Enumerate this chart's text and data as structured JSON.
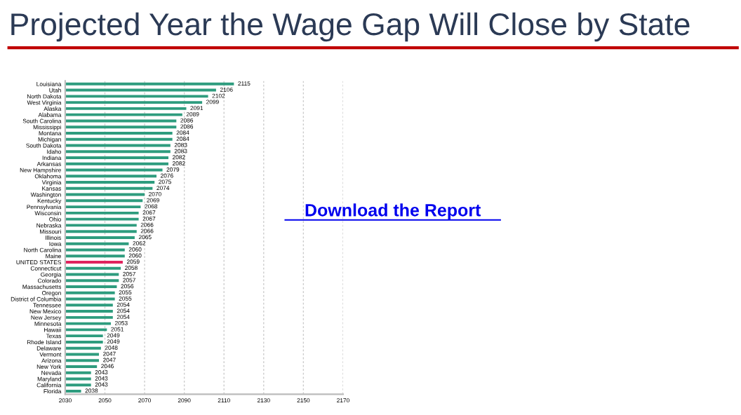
{
  "chart_data": {
    "type": "bar",
    "orientation": "horizontal",
    "title": "Projected Year the Wage Gap Will Close by State",
    "categories": [
      "Louisiana",
      "Utah",
      "North Dakota",
      "West Virginia",
      "Alaska",
      "Alabama",
      "South Carolina",
      "Mississippi",
      "Montana",
      "Michigan",
      "South Dakota",
      "Idaho",
      "Indiana",
      "Arkansas",
      "New Hampshire",
      "Oklahoma",
      "Virginia",
      "Kansas",
      "Washington",
      "Kentucky",
      "Pennsylvania",
      "Wisconsin",
      "Ohio",
      "Nebraska",
      "Missouri",
      "Illinois",
      "Iowa",
      "North Carolina",
      "Maine",
      "UNITED STATES",
      "Connecticut",
      "Georgia",
      "Colorado",
      "Massachusetts",
      "Oregon",
      "District of Columbia",
      "Tennessee",
      "New Mexico",
      "New Jersey",
      "Minnesota",
      "Hawaii",
      "Texas",
      "Rhode Island",
      "Delaware",
      "Vermont",
      "Arizona",
      "New York",
      "Nevada",
      "Maryland",
      "California",
      "Florida"
    ],
    "values": [
      2115,
      2106,
      2102,
      2099,
      2091,
      2089,
      2086,
      2086,
      2084,
      2084,
      2083,
      2083,
      2082,
      2082,
      2079,
      2076,
      2075,
      2074,
      2070,
      2069,
      2068,
      2067,
      2067,
      2066,
      2066,
      2065,
      2062,
      2060,
      2060,
      2059,
      2058,
      2057,
      2057,
      2056,
      2055,
      2055,
      2054,
      2054,
      2054,
      2053,
      2051,
      2049,
      2049,
      2048,
      2047,
      2047,
      2046,
      2043,
      2043,
      2043,
      2038
    ],
    "colors": [
      "#2e9c7e",
      "#2e9c7e",
      "#2e9c7e",
      "#2e9c7e",
      "#2e9c7e",
      "#2e9c7e",
      "#2e9c7e",
      "#2e9c7e",
      "#2e9c7e",
      "#2e9c7e",
      "#2e9c7e",
      "#2e9c7e",
      "#2e9c7e",
      "#2e9c7e",
      "#2e9c7e",
      "#2e9c7e",
      "#2e9c7e",
      "#2e9c7e",
      "#2e9c7e",
      "#2e9c7e",
      "#2e9c7e",
      "#2e9c7e",
      "#2e9c7e",
      "#2e9c7e",
      "#2e9c7e",
      "#2e9c7e",
      "#2e9c7e",
      "#2e9c7e",
      "#2e9c7e",
      "#e0245e",
      "#2e9c7e",
      "#2e9c7e",
      "#2e9c7e",
      "#2e9c7e",
      "#2e9c7e",
      "#2e9c7e",
      "#2e9c7e",
      "#2e9c7e",
      "#2e9c7e",
      "#2e9c7e",
      "#2e9c7e",
      "#2e9c7e",
      "#2e9c7e",
      "#2e9c7e",
      "#2e9c7e",
      "#2e9c7e",
      "#2e9c7e",
      "#2e9c7e",
      "#2e9c7e",
      "#2e9c7e",
      "#2e9c7e"
    ],
    "xlim": [
      2030,
      2170
    ],
    "xticks": [
      2030,
      2050,
      2070,
      2090,
      2110,
      2130,
      2150,
      2170
    ],
    "data_labels": true,
    "grid": "x",
    "annotations": [
      "Download the Report"
    ]
  }
}
